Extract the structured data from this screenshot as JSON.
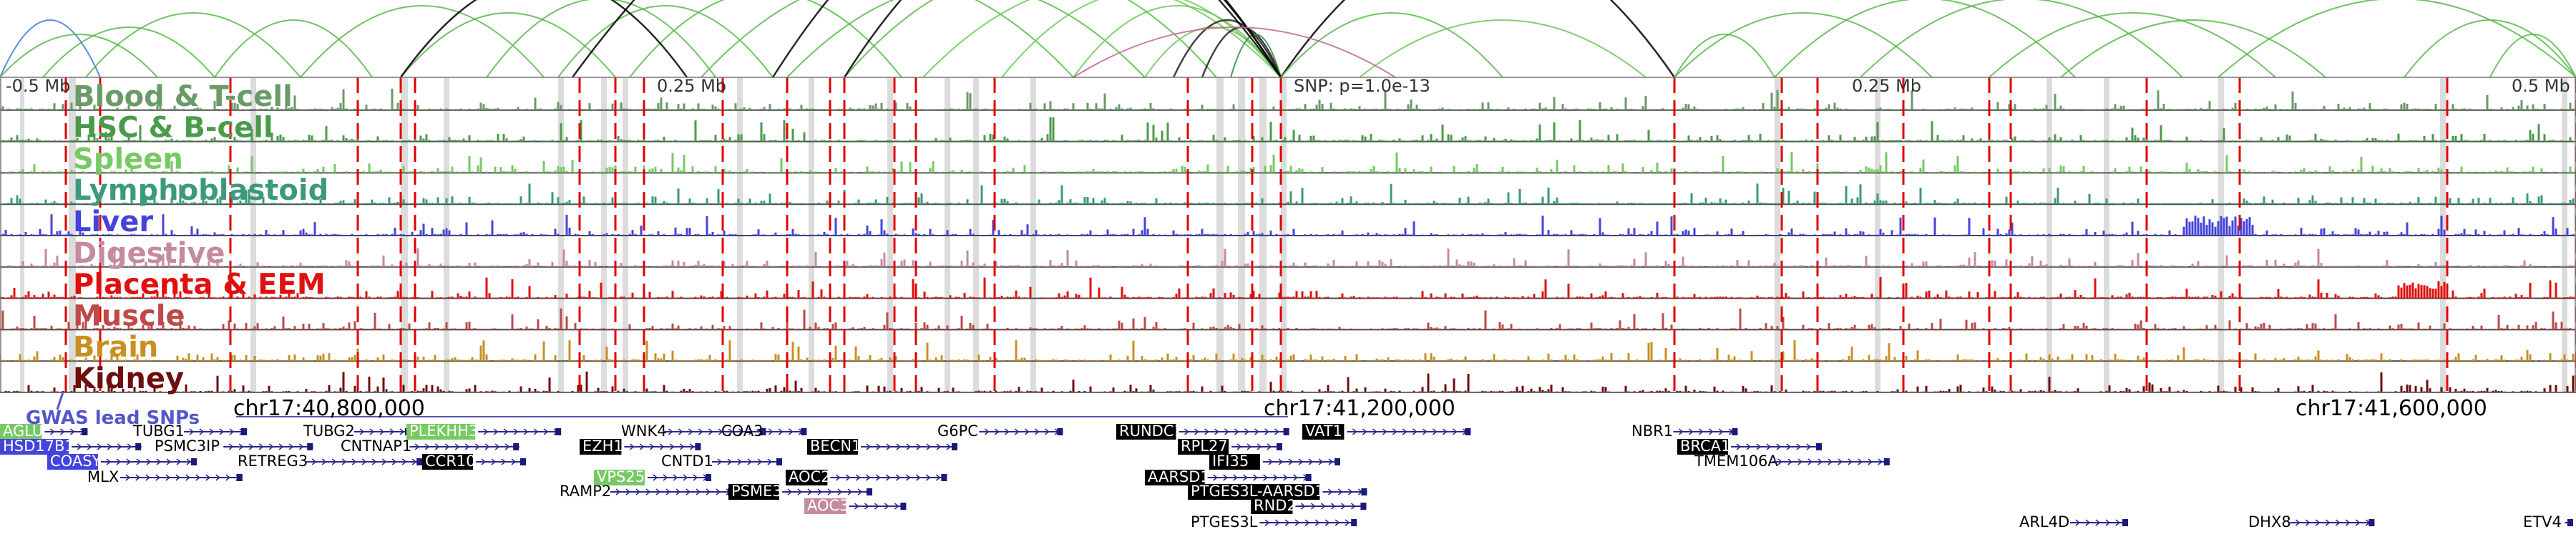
{
  "tracks": [
    {
      "label": "Blood & T-cell",
      "color": "#6a9a67"
    },
    {
      "label": "HSC & B-cell",
      "color": "#4c9a4c"
    },
    {
      "label": "Spleen",
      "color": "#77c964"
    },
    {
      "label": "Lymphoblastoid",
      "color": "#3c9a7c"
    },
    {
      "label": "Liver",
      "color": "#4444dd"
    },
    {
      "label": "Digestive",
      "color": "#c48aa0"
    },
    {
      "label": "Placenta & EEM",
      "color": "#e01010"
    },
    {
      "label": "Muscle",
      "color": "#c04848"
    },
    {
      "label": "Brain",
      "color": "#c89020"
    },
    {
      "label": "Kidney",
      "color": "#6e0e0e"
    }
  ],
  "axis_notes": {
    "left": "-0.5 Mb",
    "mid_left": "0.25 Mb",
    "snp": "SNP: p=1.0e-13",
    "mid_right": "0.25 Mb",
    "right": "0.5 Mb"
  },
  "coordinates": [
    "chr17:40,800,000",
    "chr17:41,200,000",
    "chr17:41,600,000"
  ],
  "gwas_label": "GWAS lead SNPs",
  "genes": [
    {
      "name": "AGLU",
      "style": "hl-green"
    },
    {
      "name": "HSD17B1",
      "style": "hl-blue"
    },
    {
      "name": "COASY",
      "style": "hl-blue"
    },
    {
      "name": "MLX",
      "style": "plain"
    },
    {
      "name": "TUBG1",
      "style": "plain"
    },
    {
      "name": "PSMC3IP",
      "style": "plain"
    },
    {
      "name": "RETREG3",
      "style": "plain"
    },
    {
      "name": "TUBG2",
      "style": "plain"
    },
    {
      "name": "PLEKHH3",
      "style": "hl-green"
    },
    {
      "name": "CNTNAP1",
      "style": "plain"
    },
    {
      "name": "CCR10",
      "style": "hl-black"
    },
    {
      "name": "EZH1",
      "style": "hl-black"
    },
    {
      "name": "WNK4",
      "style": "plain"
    },
    {
      "name": "COA3",
      "style": "plain"
    },
    {
      "name": "CNTD1",
      "style": "plain"
    },
    {
      "name": "BECN1",
      "style": "hl-black"
    },
    {
      "name": "RAMP2",
      "style": "plain"
    },
    {
      "name": "VPS25",
      "style": "hl-green"
    },
    {
      "name": "PSME3",
      "style": "hl-black"
    },
    {
      "name": "AOC2",
      "style": "hl-black"
    },
    {
      "name": "AOC3",
      "style": "hl-pink"
    },
    {
      "name": "G6PC",
      "style": "plain"
    },
    {
      "name": "RUNDC1",
      "style": "hl-black"
    },
    {
      "name": "RPL27",
      "style": "hl-black"
    },
    {
      "name": "IFI35",
      "style": "hl-black"
    },
    {
      "name": "AARSD1",
      "style": "hl-black"
    },
    {
      "name": "PTGES3L-AARSD1",
      "style": "hl-black"
    },
    {
      "name": "RND2",
      "style": "hl-black"
    },
    {
      "name": "PTGES3L",
      "style": "plain"
    },
    {
      "name": "VAT1",
      "style": "hl-black"
    },
    {
      "name": "NBR1",
      "style": "plain"
    },
    {
      "name": "BRCA1",
      "style": "hl-black"
    },
    {
      "name": "TMEM106A",
      "style": "plain"
    },
    {
      "name": "ARL4D",
      "style": "plain"
    },
    {
      "name": "DHX8",
      "style": "plain"
    },
    {
      "name": "ETV4",
      "style": "plain"
    }
  ]
}
